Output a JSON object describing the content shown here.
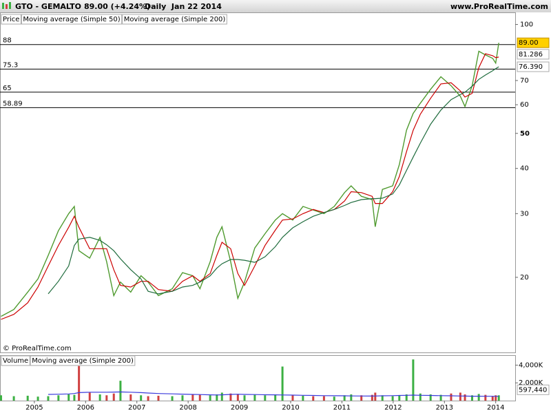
{
  "chart_data": [
    {
      "type": "line",
      "title": "GTO - GEMALTO",
      "quote": "89.00 (+4.24%)",
      "period": "Daily  Jan 22 2014",
      "source": "www.ProRealTime.com",
      "watermark": "© ProRealTime.com",
      "x": [
        2004.35,
        2004.6,
        2004.87,
        2005.07,
        2005.27,
        2005.47,
        2005.67,
        2005.78,
        2005.87,
        2006.08,
        2006.28,
        2006.41,
        2006.55,
        2006.68,
        2006.88,
        2007.08,
        2007.22,
        2007.42,
        2007.69,
        2007.89,
        2008.09,
        2008.23,
        2008.43,
        2008.56,
        2008.66,
        2008.83,
        2008.97,
        2009.1,
        2009.3,
        2009.5,
        2009.7,
        2009.84,
        2010.04,
        2010.24,
        2010.44,
        2010.65,
        2010.85,
        2011.05,
        2011.18,
        2011.38,
        2011.59,
        2011.65,
        2011.79,
        2011.99,
        2012.12,
        2012.26,
        2012.39,
        2012.53,
        2012.73,
        2012.93,
        2013.13,
        2013.31,
        2013.4,
        2013.54,
        2013.67,
        2013.8,
        2013.94,
        2014.0,
        2014.06
      ],
      "series": [
        {
          "name": "Price",
          "color": "#4f9a2f",
          "last_label": "89.00",
          "values": [
            15.6,
            16.3,
            18.2,
            19.8,
            23,
            26.9,
            30,
            31.4,
            23.7,
            22.6,
            25.8,
            22.1,
            17.8,
            19.4,
            18.2,
            20.2,
            19.4,
            17.8,
            18.6,
            20.6,
            20.2,
            18.6,
            22.1,
            25.8,
            27.6,
            22.1,
            17.5,
            19.4,
            24.1,
            26.4,
            28.8,
            30,
            28.8,
            31.4,
            30.7,
            30,
            31.4,
            34.3,
            35.8,
            33.5,
            32.8,
            27.6,
            35,
            35.8,
            41,
            51,
            56.8,
            60.6,
            66.2,
            71.7,
            67.7,
            63.3,
            59.3,
            67.7,
            84.3,
            82.4,
            80.6,
            78.2,
            89
          ]
        },
        {
          "name": "Moving average (Simple 50)",
          "color": "#cc0000",
          "last_label": "81.286",
          "values": [
            15.3,
            15.8,
            17.0,
            18.8,
            21.5,
            24.5,
            27.5,
            29.5,
            27.5,
            24.0,
            24.0,
            24.0,
            21.0,
            19.0,
            18.8,
            19.5,
            19.5,
            18.5,
            18.3,
            19.5,
            20.2,
            19.5,
            20.5,
            23.0,
            25.0,
            24.0,
            20.5,
            19.0,
            21.5,
            24.5,
            27.0,
            28.8,
            29.0,
            30.0,
            30.8,
            30.2,
            30.8,
            32.5,
            34.5,
            34.3,
            33.5,
            32.0,
            32.0,
            34.5,
            38.0,
            44.5,
            51.0,
            56.5,
            62.5,
            68.5,
            69.0,
            65.5,
            63.0,
            64.5,
            76.0,
            83.0,
            82.0,
            81.0,
            81.286
          ]
        },
        {
          "name": "Moving average (Simple 200)",
          "color": "#1e6b3c",
          "last_label": "76.390",
          "values": [
            null,
            null,
            null,
            null,
            18.0,
            19.5,
            21.5,
            24.5,
            25.5,
            25.8,
            25.3,
            24.6,
            23.7,
            22.5,
            21.0,
            19.8,
            18.3,
            18.0,
            18.3,
            18.8,
            19.0,
            19.4,
            20.2,
            21.2,
            21.8,
            22.4,
            22.4,
            22.3,
            22.0,
            22.8,
            24.3,
            25.8,
            27.4,
            28.5,
            29.5,
            30.2,
            30.8,
            31.6,
            32.2,
            32.8,
            33.0,
            33.0,
            33.1,
            34.0,
            36.0,
            39.5,
            43,
            47,
            53,
            58,
            62,
            64,
            65,
            67.5,
            70.5,
            72.5,
            74.5,
            75.5,
            76.39
          ]
        }
      ],
      "hlines": [
        88,
        75.3,
        65,
        58.89
      ],
      "log_scale": true,
      "ylim": [
        12.4,
        108
      ],
      "yticks": [
        20,
        30,
        40,
        50,
        60,
        70,
        100
      ],
      "xlim": [
        2004.33,
        2014.38
      ],
      "xticks": [
        2005,
        2006,
        2007,
        2008,
        2009,
        2010,
        2011,
        2012,
        2013,
        2014
      ]
    },
    {
      "type": "bar",
      "series": [
        {
          "name": "Volume",
          "color": "#3cb043",
          "down_color": "#d04040",
          "last_label": "597,440",
          "values": [
            600000,
            500000,
            550000,
            450000,
            500000,
            600000,
            700000,
            650000,
            3900000,
            900000,
            700000,
            600000,
            800000,
            2240000,
            700000,
            600000,
            500000,
            550000,
            500000,
            600000,
            700000,
            650000,
            600000,
            700000,
            900000,
            800000,
            700000,
            600000,
            650000,
            600000,
            700000,
            3840000,
            600000,
            550000,
            500000,
            500000,
            450000,
            600000,
            700000,
            600000,
            650000,
            900000,
            600000,
            500000,
            550000,
            700000,
            4640000,
            800000,
            700000,
            650000,
            800000,
            900000,
            700000,
            600000,
            750000,
            650000,
            500000,
            600000,
            597440
          ]
        },
        {
          "name": "Moving average (Simple 200)",
          "color": "#3a3adc",
          "values": [
            null,
            null,
            null,
            null,
            700000,
            720000,
            750000,
            800000,
            900000,
            950000,
            950000,
            950000,
            960000,
            980000,
            950000,
            900000,
            850000,
            800000,
            760000,
            730000,
            700000,
            680000,
            650000,
            640000,
            650000,
            700000,
            720000,
            700000,
            680000,
            660000,
            650000,
            640000,
            620000,
            600000,
            580000,
            560000,
            550000,
            540000,
            530000,
            520000,
            510000,
            520000,
            540000,
            560000,
            580000,
            600000,
            620000,
            600000,
            580000,
            560000,
            540000,
            520000,
            510000,
            500000,
            500000,
            490000,
            490000,
            480000,
            480000
          ]
        }
      ],
      "ylim": [
        0,
        5120000
      ],
      "yticks": [
        {
          "value": 2000000,
          "label": "2,000K"
        },
        {
          "value": 4000000,
          "label": "4,000K"
        }
      ]
    }
  ]
}
